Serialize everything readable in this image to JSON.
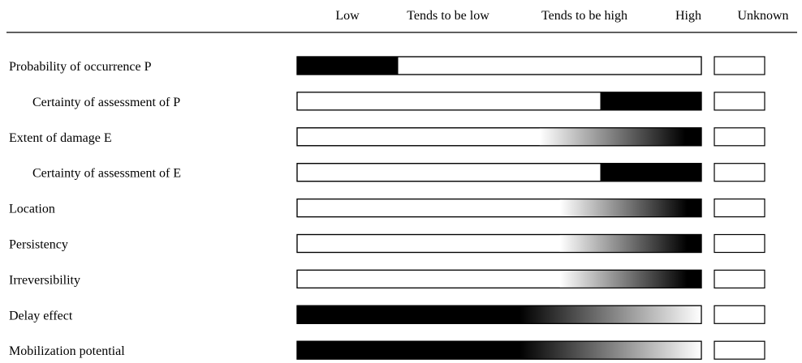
{
  "chart_data": {
    "type": "bar",
    "scale_labels": [
      "Low",
      "Tends to be low",
      "Tends to be high",
      "High",
      "Unknown"
    ],
    "criteria": [
      {
        "label": "Probability of occurrence P",
        "indent": false,
        "fill": "solid",
        "level": [
          0.0,
          0.25
        ],
        "unknown": false
      },
      {
        "label": "Certainty of assessment of P",
        "indent": true,
        "fill": "solid",
        "level": [
          0.75,
          1.0
        ],
        "unknown": false
      },
      {
        "label": "Extent of damage E",
        "indent": false,
        "fill": "gradient-right",
        "level": [
          0.6,
          1.0
        ],
        "unknown": false
      },
      {
        "label": "Certainty of assessment of E",
        "indent": true,
        "fill": "solid",
        "level": [
          0.75,
          1.0
        ],
        "unknown": false
      },
      {
        "label": "Location",
        "indent": false,
        "fill": "gradient-right",
        "level": [
          0.65,
          1.0
        ],
        "unknown": false
      },
      {
        "label": "Persistency",
        "indent": false,
        "fill": "gradient-right",
        "level": [
          0.65,
          1.0
        ],
        "unknown": false
      },
      {
        "label": "Irreversibility",
        "indent": false,
        "fill": "gradient-right",
        "level": [
          0.65,
          1.0
        ],
        "unknown": false
      },
      {
        "label": "Delay effect",
        "indent": false,
        "fill": "gradient-left",
        "level": [
          0.0,
          1.0
        ],
        "unknown": false
      },
      {
        "label": "Mobilization potential",
        "indent": false,
        "fill": "gradient-left",
        "level": [
          0.0,
          1.0
        ],
        "unknown": false
      }
    ],
    "colors": {
      "fill": "#000000",
      "background": "#ffffff",
      "border": "#000000"
    }
  }
}
